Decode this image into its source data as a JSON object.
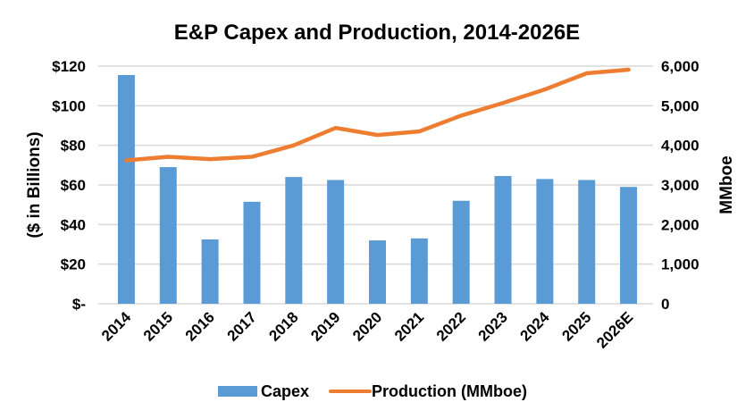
{
  "chart_data": {
    "type": "bar",
    "title": "E&P Capex and Production, 2014-2026E",
    "categories": [
      "2014",
      "2015",
      "2016",
      "2017",
      "2018",
      "2019",
      "2020",
      "2021",
      "2022",
      "2023",
      "2024",
      "2025",
      "2026E"
    ],
    "series": [
      {
        "name": "Capex",
        "type": "bar",
        "axis": "left",
        "color": "#5b9bd5",
        "values": [
          115.5,
          69,
          32.5,
          51.5,
          64,
          62.5,
          32,
          33,
          52,
          64.5,
          63,
          62.5,
          59
        ]
      },
      {
        "name": "Production (MMboe)",
        "type": "line",
        "axis": "right",
        "color": "#ed7d31",
        "values": [
          3620,
          3710,
          3650,
          3710,
          4000,
          4440,
          4260,
          4350,
          4750,
          5070,
          5410,
          5820,
          5910
        ]
      }
    ],
    "y_left": {
      "label": "($ in Billions)",
      "range": [
        0,
        120
      ],
      "ticks": [
        0,
        20,
        40,
        60,
        80,
        100,
        120
      ],
      "tick_labels": [
        "$-",
        "$20",
        "$40",
        "$60",
        "$80",
        "$100",
        "$120"
      ]
    },
    "y_right": {
      "label": "MMboe",
      "range": [
        0,
        6000
      ],
      "ticks": [
        0,
        1000,
        2000,
        3000,
        4000,
        5000,
        6000
      ],
      "tick_labels": [
        "0",
        "1,000",
        "2,000",
        "3,000",
        "4,000",
        "5,000",
        "6,000"
      ]
    },
    "xlabel": "",
    "grid": true,
    "legend_position": "bottom"
  }
}
